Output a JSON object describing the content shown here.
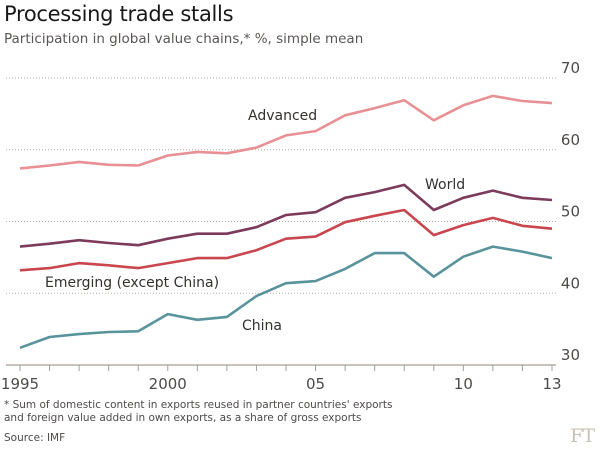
{
  "title": "Processing trade stalls",
  "subtitle": "Participation in global value chains,* %, simple mean",
  "footnote_line1": "* Sum of domestic content in exports reused in partner countries' exports",
  "footnote_line2": "and foreign value added in own exports, as a share of gross exports",
  "source": "Source: IMF",
  "logo": "FT",
  "chart_data": {
    "type": "line",
    "title": "Processing trade stalls",
    "subtitle": "Participation in global value chains,* %, simple mean",
    "xlabel": "",
    "ylabel": "",
    "ylim": [
      30,
      70
    ],
    "xlim": [
      1995,
      2013
    ],
    "grid": true,
    "yticks": [
      30,
      40,
      50,
      60,
      70
    ],
    "ytick_labels": [
      "30",
      "40",
      "50",
      "60",
      "70"
    ],
    "xticks": [
      1995,
      2000,
      2005,
      2010,
      2013
    ],
    "xtick_labels": [
      "1995",
      "2000",
      "05",
      "10",
      "13"
    ],
    "x": [
      1995,
      1996,
      1997,
      1998,
      1999,
      2000,
      2001,
      2002,
      2003,
      2004,
      2005,
      2006,
      2007,
      2008,
      2009,
      2010,
      2011,
      2012,
      2013
    ],
    "series": [
      {
        "name": "Advanced",
        "color": "#e89094",
        "values": [
          57.4,
          57.8,
          58.3,
          57.9,
          57.8,
          59.2,
          59.7,
          59.5,
          60.3,
          62.0,
          62.6,
          64.8,
          65.8,
          66.9,
          64.1,
          66.2,
          67.5,
          66.8,
          66.5
        ]
      },
      {
        "name": "World",
        "color": "#7d3b5b",
        "values": [
          46.5,
          46.9,
          47.4,
          47.0,
          46.7,
          47.6,
          48.3,
          48.3,
          49.2,
          50.9,
          51.3,
          53.3,
          54.1,
          55.1,
          51.6,
          53.3,
          54.3,
          53.3,
          53.0
        ]
      },
      {
        "name": "Emerging (except China)",
        "color": "#c9464e",
        "values": [
          43.2,
          43.5,
          44.2,
          43.9,
          43.5,
          44.2,
          44.9,
          44.9,
          46.0,
          47.6,
          47.9,
          49.9,
          50.8,
          51.6,
          48.1,
          49.5,
          50.5,
          49.4,
          49.0
        ]
      },
      {
        "name": "China",
        "color": "#59939b",
        "values": [
          32.4,
          33.9,
          34.3,
          34.6,
          34.7,
          37.1,
          36.3,
          36.7,
          39.6,
          41.4,
          41.7,
          43.4,
          45.6,
          45.6,
          42.3,
          45.1,
          46.5,
          45.8,
          44.9
        ]
      }
    ]
  }
}
